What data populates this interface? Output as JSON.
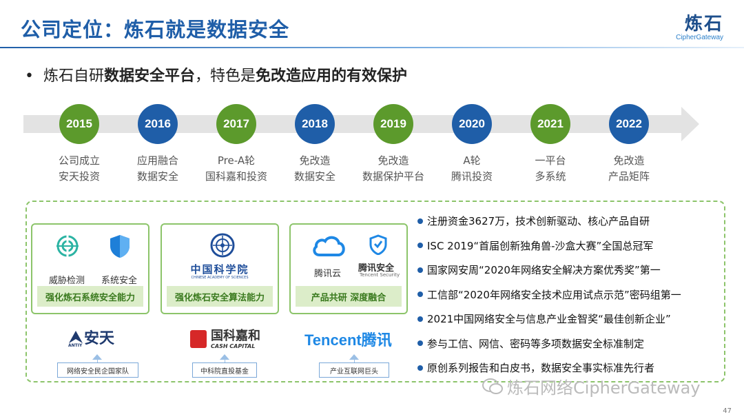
{
  "header": {
    "title": "公司定位：炼石就是数据安全",
    "logo_cn": "炼石",
    "logo_en": "CipherGateway"
  },
  "bullet": {
    "marker": "•",
    "text_prefix": "炼石自研",
    "text_bold1": "数据安全平台",
    "text_mid": "，特色是",
    "text_bold2": "免改造应用的有效保护"
  },
  "timeline": [
    {
      "year": "2015",
      "color": "green",
      "line1": "公司成立",
      "line2": "安天投资"
    },
    {
      "year": "2016",
      "color": "blue",
      "line1": "应用融合",
      "line2": "数据安全"
    },
    {
      "year": "2017",
      "color": "green",
      "line1": "Pre-A轮",
      "line2": "国科嘉和投资"
    },
    {
      "year": "2018",
      "color": "blue",
      "line1": "免改造",
      "line2": "数据安全"
    },
    {
      "year": "2019",
      "color": "green",
      "line1": "免改造",
      "line2": "数据保护平台"
    },
    {
      "year": "2020",
      "color": "blue",
      "line1": "A轮",
      "line2": "腾讯投资"
    },
    {
      "year": "2021",
      "color": "green",
      "line1": "一平台",
      "line2": "多系统"
    },
    {
      "year": "2022",
      "color": "blue",
      "line1": "免改造",
      "line2": "产品矩阵"
    }
  ],
  "cards": [
    {
      "item1": "威胁检测",
      "item2": "系统安全",
      "band": "强化炼石系统安全能力",
      "company": "安天",
      "company_sub": "ANTIY",
      "tag": "网络安全民企国家队"
    },
    {
      "item1": "中国科学院",
      "item1_sub": "CHINESE ACADEMY OF SCIENCES",
      "band": "强化炼石安全算法能力",
      "company": "国科嘉和",
      "company_sub": "CASH CAPITAL",
      "tag": "中科院直投基金"
    },
    {
      "item1": "腾讯云",
      "item2": "腾讯安全",
      "item2_sub": "Tencent Security",
      "band": "产品共研 深度融合",
      "company": "Tencent腾讯",
      "tag": "产业互联网巨头"
    }
  ],
  "facts": [
    "注册资金3627万，技术创新驱动、核心产品自研",
    "ISC 2019“首届创新独角兽-沙盒大赛”全国总冠军",
    "国家网安周“2020年网络安全解决方案优秀奖”第一",
    "工信部“2020年网络安全技术应用试点示范”密码组第一",
    "2021中国网络安全与信息产业金智奖“最佳创新企业”",
    "参与工信、网信、密码等多项数据安全标准制定",
    "原创系列报告和白皮书，数据安全事实标准先行者"
  ],
  "watermark": "炼石网络CipherGateway",
  "page_number": "47",
  "colors": {
    "blue": "#1f5ea8",
    "green": "#5c9a2c",
    "band_bg": "#dcedc9",
    "dashed": "#8cc46a"
  }
}
